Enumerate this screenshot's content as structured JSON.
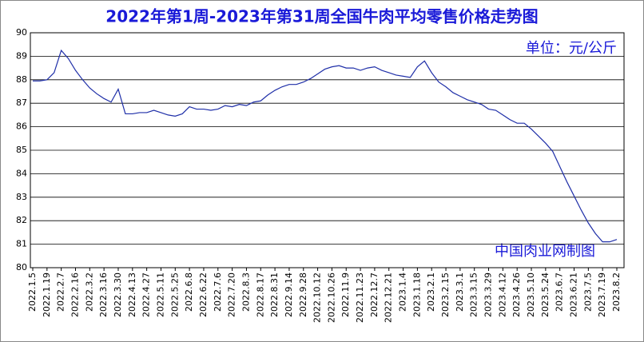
{
  "chart_data": {
    "type": "line",
    "title": "2022年第1周-2023年第31周全国牛肉平均零售价格走势图",
    "unit_label": "单位：元/公斤",
    "source": "中国肉业网制图",
    "categories": [
      "2022.1.5",
      null,
      "2022.1.19",
      null,
      "2022.2.7",
      null,
      "2022.2.16",
      null,
      "2022.3.2",
      null,
      "2022.3.16",
      null,
      "2022.3.30",
      null,
      "2022.4.13",
      null,
      "2022.4.27",
      null,
      "2022.5.11",
      null,
      "2022.5.25",
      null,
      "2022.6.8",
      null,
      "2022.6.22",
      null,
      "2022.7.6",
      null,
      "2022.7.20",
      null,
      "2022.8.3",
      null,
      "2022.8.17",
      null,
      "2022.8.31",
      null,
      "2022.9.14",
      null,
      "2022.9.28",
      null,
      "2022.10.12",
      null,
      "2022.10.26",
      null,
      "2022.11.9",
      null,
      "2022.11.23",
      null,
      "2022.12.7",
      null,
      "2022.12.21",
      null,
      "2023.1.4",
      null,
      "2023.1.18",
      null,
      "2023.2.1",
      null,
      "2023.2.15",
      null,
      "2023.3.1",
      null,
      "2023.3.15",
      null,
      "2023.3.29",
      null,
      "2023.4.12",
      null,
      "2023.4.26",
      null,
      "2023.5.10",
      null,
      "2023.5.24",
      null,
      "2023.6.7",
      null,
      "2023.6.21",
      null,
      "2023.7.5",
      null,
      "2023.7.19",
      null,
      "2023.8.2"
    ],
    "series": [
      {
        "name": "全国牛肉平均零售价格",
        "color": "#1f2fa8",
        "values": [
          87.95,
          87.95,
          88.0,
          88.3,
          89.25,
          88.9,
          88.4,
          88.0,
          87.65,
          87.4,
          87.2,
          87.05,
          87.6,
          86.55,
          86.55,
          86.6,
          86.6,
          86.7,
          86.6,
          86.5,
          86.45,
          86.55,
          86.85,
          86.75,
          86.75,
          86.7,
          86.75,
          86.9,
          86.85,
          86.95,
          86.9,
          87.05,
          87.1,
          87.35,
          87.55,
          87.7,
          87.8,
          87.8,
          87.9,
          88.05,
          88.25,
          88.45,
          88.55,
          88.6,
          88.5,
          88.5,
          88.4,
          88.5,
          88.55,
          88.4,
          88.3,
          88.2,
          88.15,
          88.1,
          88.55,
          88.8,
          88.3,
          87.9,
          87.7,
          87.45,
          87.3,
          87.15,
          87.05,
          86.95,
          86.75,
          86.7,
          86.5,
          86.3,
          86.15,
          86.15,
          85.9,
          85.6,
          85.3,
          84.95,
          84.3,
          83.65,
          83.05,
          82.45,
          81.9,
          81.45,
          81.1,
          81.1,
          81.2
        ]
      }
    ],
    "ylim": [
      80,
      90
    ],
    "yticks": [
      80,
      81,
      82,
      83,
      84,
      85,
      86,
      87,
      88,
      89,
      90
    ],
    "grid": true
  }
}
